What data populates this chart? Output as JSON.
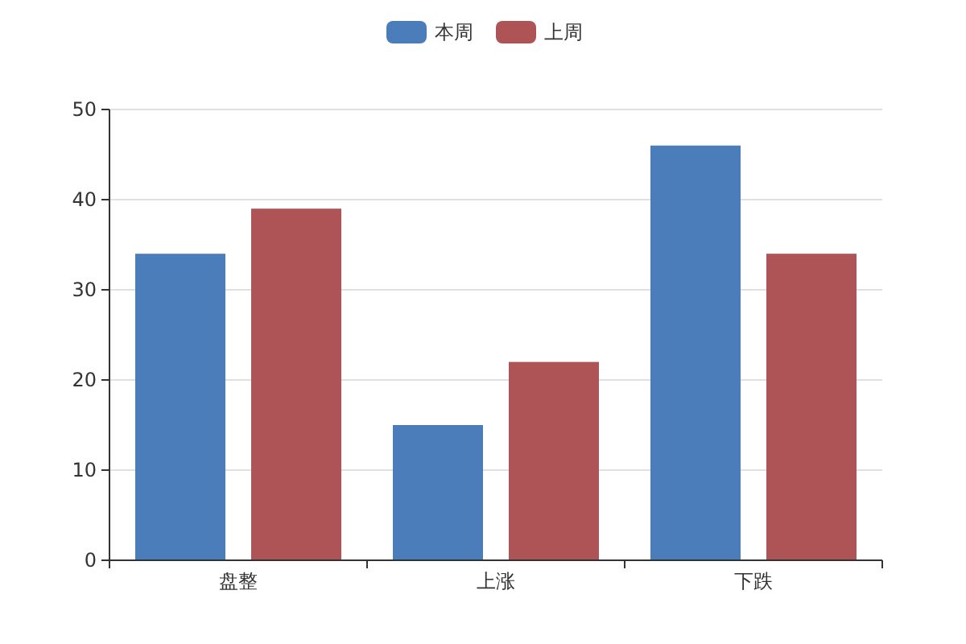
{
  "chart_data": {
    "type": "bar",
    "categories": [
      "盘整",
      "上涨",
      "下跌"
    ],
    "series": [
      {
        "name": "本周",
        "color": "#4b7dba",
        "values": [
          34,
          15,
          46
        ]
      },
      {
        "name": "上周",
        "color": "#ae5356",
        "values": [
          39,
          22,
          34
        ]
      }
    ],
    "ylim": [
      0,
      50
    ],
    "yticks": [
      0,
      10,
      20,
      30,
      40,
      50
    ],
    "grid": "y",
    "legend": "top"
  }
}
